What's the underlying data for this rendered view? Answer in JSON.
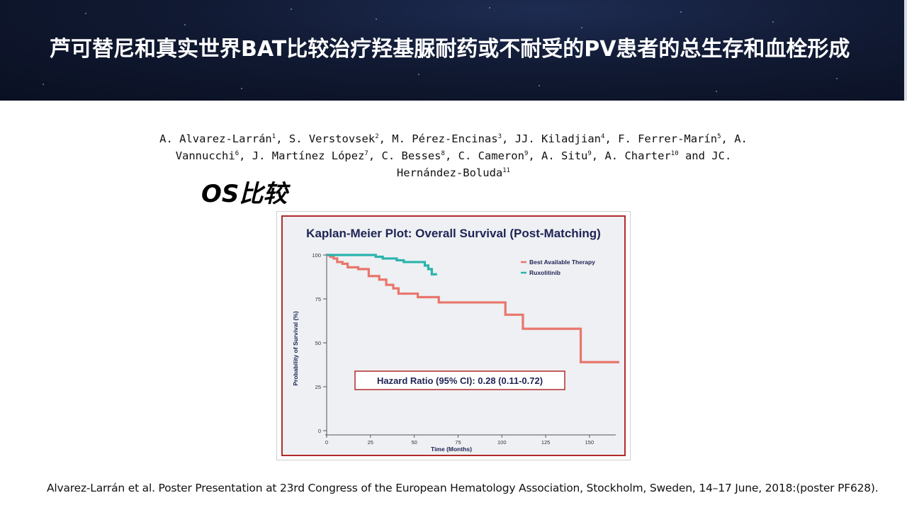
{
  "slide": {
    "title": "芦可替尼和真实世界BAT比较治疗羟基脲耐药或不耐受的PV患者的总生存和血栓形成",
    "authors": [
      {
        "name": "A. Alvarez-Larrán",
        "sup": "1",
        "sep": ", "
      },
      {
        "name": "S. Verstovsek",
        "sup": "2",
        "sep": ", "
      },
      {
        "name": "M. Pérez-Encinas",
        "sup": "3",
        "sep": ", "
      },
      {
        "name": "JJ. Kiladjian",
        "sup": "4",
        "sep": ", "
      },
      {
        "name": "F. Ferrer-Marín",
        "sup": "5",
        "sep": ", "
      },
      {
        "name": "A. Vannucchi",
        "sup": "6",
        "sep": ", "
      },
      {
        "name": "J. Martínez López",
        "sup": "7",
        "sep": ", "
      },
      {
        "name": "C. Besses",
        "sup": "8",
        "sep": ", "
      },
      {
        "name": "C. Cameron",
        "sup": "9",
        "sep": ", "
      },
      {
        "name": "A. Situ",
        "sup": "9",
        "sep": ", "
      },
      {
        "name": "A. Charter",
        "sup": "10",
        "sep": " and "
      },
      {
        "name": "JC. Hernández-Boluda",
        "sup": "11",
        "sep": ""
      }
    ],
    "section_title": "OS比较",
    "footer": "Alvarez-Larrán et al. Poster Presentation at 23rd Congress of the European Hematology Association, Stockholm, Sweden, 14–17 June, 2018:(poster PF628)."
  },
  "chart_data": {
    "type": "line",
    "title": "Kaplan-Meier Plot: Overall Survival (Post-Matching)",
    "xlabel": "Time (Months)",
    "ylabel": "Probability of Survival (%)",
    "xlim": [
      0,
      165
    ],
    "ylim": [
      0,
      100
    ],
    "x_ticks": [
      0,
      25,
      50,
      75,
      100,
      125,
      150
    ],
    "y_ticks": [
      0,
      25,
      50,
      75,
      100
    ],
    "legend_position": "top-right",
    "annotation": "Hazard Ratio (95% CI): 0.28 (0.11-0.72)",
    "series": [
      {
        "name": "Best Available Therapy",
        "color": "#e8766c",
        "step_points": [
          [
            0,
            100
          ],
          [
            2,
            99
          ],
          [
            4,
            98
          ],
          [
            6,
            96
          ],
          [
            9,
            95
          ],
          [
            12,
            93
          ],
          [
            18,
            92
          ],
          [
            24,
            88
          ],
          [
            30,
            86
          ],
          [
            34,
            83
          ],
          [
            38,
            81
          ],
          [
            41,
            78
          ],
          [
            52,
            76
          ],
          [
            64,
            73
          ],
          [
            102,
            66
          ],
          [
            112,
            58
          ],
          [
            145,
            39
          ],
          [
            167,
            39
          ]
        ]
      },
      {
        "name": "Ruxolitinib",
        "color": "#2bb3ad",
        "step_points": [
          [
            0,
            100
          ],
          [
            28,
            99
          ],
          [
            32,
            98
          ],
          [
            40,
            97
          ],
          [
            44,
            96
          ],
          [
            56,
            94
          ],
          [
            58,
            92
          ],
          [
            60,
            89
          ],
          [
            63,
            89
          ]
        ]
      }
    ]
  }
}
